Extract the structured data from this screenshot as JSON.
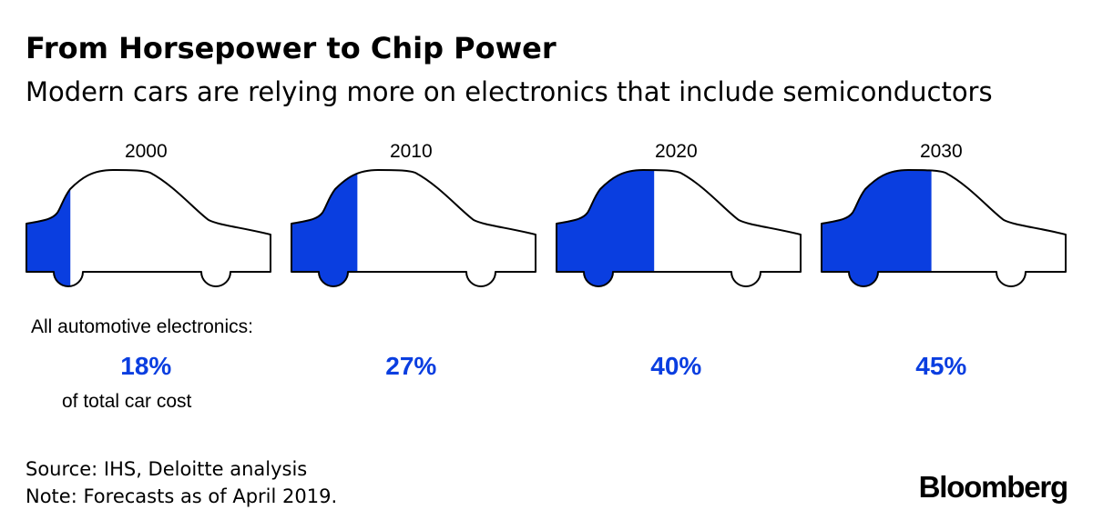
{
  "title": "From Horsepower to Chip Power",
  "subtitle": "Modern cars are relying more on electronics that include semiconductors",
  "chart_data": {
    "type": "bar",
    "categories": [
      "2000",
      "2010",
      "2020",
      "2030"
    ],
    "values": [
      18,
      27,
      40,
      45
    ],
    "unit": "%",
    "value_labels": [
      "18%",
      "27%",
      "40%",
      "45%"
    ],
    "label_intro": "All automotive electronics:",
    "label_outro": "of total car cost",
    "fill_color": "#0a3ee0",
    "outline_color": "#000000",
    "car_body_color": "#ffffff"
  },
  "source": "Source: IHS, Deloitte analysis",
  "note": "Note: Forecasts as of April 2019.",
  "brand": "Bloomberg"
}
